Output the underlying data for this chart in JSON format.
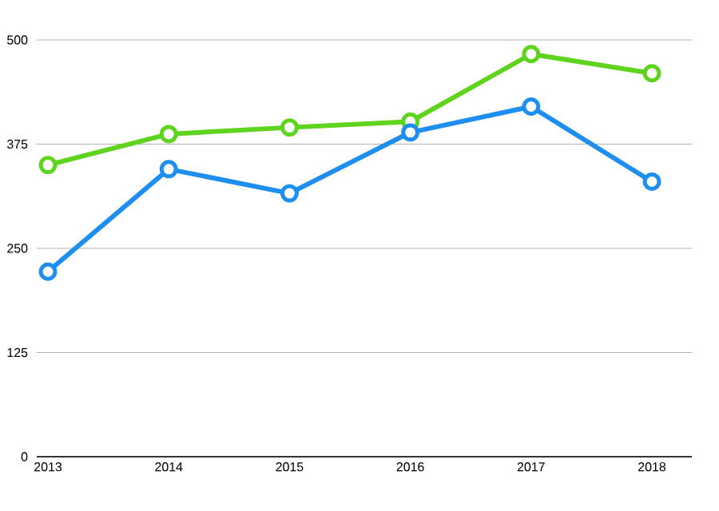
{
  "chart_data": {
    "type": "line",
    "categories": [
      "2013",
      "2014",
      "2015",
      "2016",
      "2017",
      "2018"
    ],
    "series": [
      {
        "color": "#5fd41e",
        "values": [
          350,
          387,
          395,
          402,
          483,
          460
        ]
      },
      {
        "color": "#1e8ff0",
        "values": [
          222,
          345,
          316,
          389,
          420,
          330
        ]
      }
    ],
    "ylim": [
      0,
      500
    ],
    "yticks": [
      0,
      125,
      250,
      375,
      500
    ],
    "grid": "y",
    "marker": "circle",
    "line_style": "solid"
  }
}
